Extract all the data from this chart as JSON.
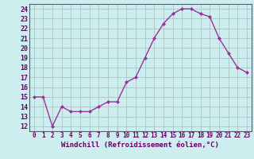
{
  "x": [
    0,
    1,
    2,
    3,
    4,
    5,
    6,
    7,
    8,
    9,
    10,
    11,
    12,
    13,
    14,
    15,
    16,
    17,
    18,
    19,
    20,
    21,
    22,
    23
  ],
  "y": [
    15.0,
    15.0,
    12.0,
    14.0,
    13.5,
    13.5,
    13.5,
    14.0,
    14.5,
    14.5,
    16.5,
    17.0,
    19.0,
    21.0,
    22.5,
    23.5,
    24.0,
    24.0,
    23.5,
    23.2,
    21.0,
    19.5,
    18.0,
    17.5
  ],
  "line_color": "#993399",
  "marker": "D",
  "marker_size": 2.0,
  "bg_color": "#cceeee",
  "grid_color": "#aabbbb",
  "xlabel": "Windchill (Refroidissement éolien,°C)",
  "ylabel_ticks": [
    12,
    13,
    14,
    15,
    16,
    17,
    18,
    19,
    20,
    21,
    22,
    23,
    24
  ],
  "ylim": [
    11.5,
    24.5
  ],
  "xlim": [
    -0.5,
    23.5
  ],
  "xtick_labels": [
    "0",
    "1",
    "2",
    "3",
    "4",
    "5",
    "6",
    "7",
    "8",
    "9",
    "10",
    "11",
    "12",
    "13",
    "14",
    "15",
    "16",
    "17",
    "18",
    "19",
    "20",
    "21",
    "22",
    "23"
  ],
  "label_color": "#660066",
  "tick_color": "#660066",
  "xlabel_fontsize": 6.5,
  "ytick_fontsize": 6.0,
  "xtick_fontsize": 5.5,
  "linewidth": 1.0
}
